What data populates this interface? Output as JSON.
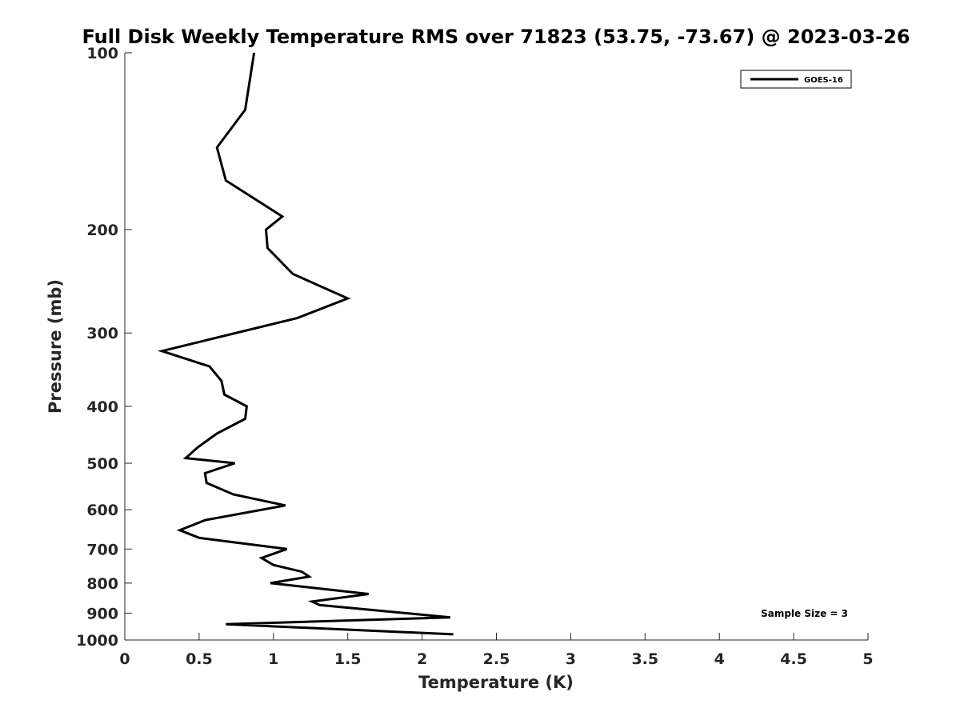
{
  "chart_data": {
    "type": "line",
    "title": "Full Disk Weekly Temperature RMS over 71823 (53.75, -73.67) @ 2023-03-26",
    "xlabel": "Temperature (K)",
    "ylabel": "Pressure (mb)",
    "xlim": [
      0,
      5
    ],
    "ylim": [
      100,
      1000
    ],
    "y_scale": "log",
    "y_reversed": true,
    "x_ticks": [
      0,
      0.5,
      1,
      1.5,
      2,
      2.5,
      3,
      3.5,
      4,
      4.5,
      5
    ],
    "x_tick_labels": [
      "0",
      "0.5",
      "1",
      "1.5",
      "2",
      "2.5",
      "3",
      "3.5",
      "4",
      "4.5",
      "5"
    ],
    "y_ticks": [
      100,
      200,
      300,
      400,
      500,
      600,
      700,
      800,
      900,
      1000
    ],
    "y_tick_labels": [
      "100",
      "200",
      "300",
      "400",
      "500",
      "600",
      "700",
      "800",
      "900",
      "1000"
    ],
    "grid": false,
    "legend_position": "top-right",
    "series": [
      {
        "name": "GOES-16",
        "color": "#000000",
        "points": [
          [
            0.87,
            100
          ],
          [
            0.81,
            125
          ],
          [
            0.62,
            145
          ],
          [
            0.68,
            165
          ],
          [
            1.06,
            190
          ],
          [
            0.95,
            200
          ],
          [
            0.96,
            215
          ],
          [
            1.13,
            238
          ],
          [
            1.5,
            262
          ],
          [
            1.16,
            283
          ],
          [
            0.25,
            322
          ],
          [
            0.57,
            342
          ],
          [
            0.65,
            362
          ],
          [
            0.67,
            382
          ],
          [
            0.82,
            400
          ],
          [
            0.81,
            420
          ],
          [
            0.62,
            445
          ],
          [
            0.49,
            470
          ],
          [
            0.41,
            490
          ],
          [
            0.74,
            500
          ],
          [
            0.54,
            520
          ],
          [
            0.55,
            540
          ],
          [
            0.73,
            565
          ],
          [
            1.08,
            590
          ],
          [
            0.54,
            625
          ],
          [
            0.37,
            650
          ],
          [
            0.5,
            670
          ],
          [
            1.09,
            700
          ],
          [
            0.92,
            725
          ],
          [
            1.0,
            745
          ],
          [
            1.19,
            765
          ],
          [
            1.24,
            780
          ],
          [
            0.98,
            800
          ],
          [
            1.64,
            835
          ],
          [
            1.26,
            860
          ],
          [
            1.31,
            872
          ],
          [
            2.19,
            915
          ],
          [
            0.68,
            940
          ],
          [
            2.21,
            978
          ]
        ]
      }
    ],
    "annotation": "Sample Size = 3"
  }
}
